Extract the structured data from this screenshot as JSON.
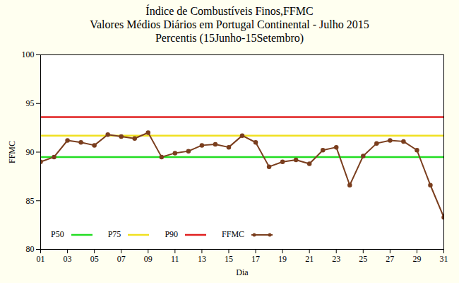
{
  "chart_data": {
    "type": "line",
    "title": "Índice de Combustíveis Finos,FFMC",
    "subtitle": [
      "Valores Médios Diários em Portugal Continental - Julho 2015",
      "Percentis (15Junho-15Setembro)"
    ],
    "x_label": "Dia",
    "y_label": "FFMC",
    "x": [
      1,
      2,
      3,
      4,
      5,
      6,
      7,
      8,
      9,
      10,
      11,
      12,
      13,
      14,
      15,
      16,
      17,
      18,
      19,
      20,
      21,
      22,
      23,
      24,
      25,
      26,
      27,
      28,
      29,
      30,
      31
    ],
    "xlim": [
      1,
      31
    ],
    "xticks": [
      {
        "value": 1,
        "label": "01"
      },
      {
        "value": 3,
        "label": "03"
      },
      {
        "value": 5,
        "label": "05"
      },
      {
        "value": 7,
        "label": "07"
      },
      {
        "value": 9,
        "label": "09"
      },
      11,
      13,
      15,
      17,
      19,
      21,
      23,
      25,
      27,
      29,
      31
    ],
    "ylim": [
      80,
      100
    ],
    "yticks": [
      80,
      85,
      90,
      95,
      100
    ],
    "grid": false,
    "legend": "lower left",
    "series": [
      {
        "name": "P50",
        "color": "#22dd22",
        "values": [
          89.5,
          89.5,
          89.5,
          89.5,
          89.5,
          89.5,
          89.5,
          89.5,
          89.5,
          89.5,
          89.5,
          89.5,
          89.5,
          89.5,
          89.5,
          89.5,
          89.5,
          89.5,
          89.5,
          89.5,
          89.5,
          89.5,
          89.5,
          89.5,
          89.5,
          89.5,
          89.5,
          89.5,
          89.5,
          89.5,
          89.5
        ]
      },
      {
        "name": "P75",
        "color": "#f0e020",
        "values": [
          91.7,
          91.7,
          91.7,
          91.7,
          91.7,
          91.7,
          91.7,
          91.7,
          91.7,
          91.7,
          91.7,
          91.7,
          91.7,
          91.7,
          91.7,
          91.7,
          91.7,
          91.7,
          91.7,
          91.7,
          91.7,
          91.7,
          91.7,
          91.7,
          91.7,
          91.7,
          91.7,
          91.7,
          91.7,
          91.7,
          91.7
        ]
      },
      {
        "name": "P90",
        "color": "#e02020",
        "values": [
          93.6,
          93.6,
          93.6,
          93.6,
          93.6,
          93.6,
          93.6,
          93.6,
          93.6,
          93.6,
          93.6,
          93.6,
          93.6,
          93.6,
          93.6,
          93.6,
          93.6,
          93.6,
          93.6,
          93.6,
          93.6,
          93.6,
          93.6,
          93.6,
          93.6,
          93.6,
          93.6,
          93.6,
          93.6,
          93.6,
          93.6
        ]
      },
      {
        "name": "FFMC",
        "color": "#7a3e1e",
        "marker": "circle",
        "values": [
          89.0,
          89.5,
          91.2,
          91.0,
          90.7,
          91.8,
          91.6,
          91.4,
          92.0,
          89.5,
          89.9,
          90.1,
          90.7,
          90.8,
          90.5,
          91.7,
          91.0,
          88.5,
          89.0,
          89.2,
          88.8,
          90.2,
          90.5,
          86.6,
          89.6,
          90.9,
          91.2,
          91.1,
          90.2,
          86.6,
          83.3
        ]
      }
    ]
  }
}
